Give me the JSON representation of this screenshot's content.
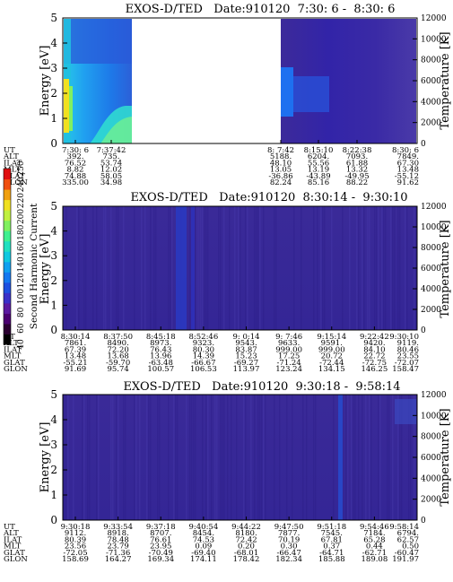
{
  "colorbar": {
    "label": "Second Harmonic Current",
    "ticks": [
      "40",
      "60",
      "80",
      "100",
      "120",
      "140",
      "160",
      "180",
      "200",
      "220",
      "240",
      "250"
    ],
    "colors": [
      "#000000",
      "#2a0030",
      "#4a0070",
      "#5b1aa0",
      "#3a30c8",
      "#1e50e0",
      "#1478f0",
      "#10a0f0",
      "#10c8e0",
      "#20e0c0",
      "#40f090",
      "#80f060",
      "#c0f040",
      "#f0e020",
      "#f0a010",
      "#f05010",
      "#e01010"
    ]
  },
  "chart_data": [
    {
      "type": "heatmap",
      "title": "EXOS-D/TED   Date:910120  7:30: 6 -  8:30: 6",
      "ylabel": "Energy [eV]",
      "ylabel_right": "Temperature [K]",
      "ylim": [
        0,
        5
      ],
      "ylim_right": [
        0,
        12000
      ],
      "yticks": [
        "0",
        "1",
        "2",
        "3",
        "4",
        "5"
      ],
      "yticks_right": [
        "0",
        "2000",
        "4000",
        "6000",
        "8000",
        "10000",
        "12000"
      ],
      "data_gap": [
        "7:37:42",
        "8: 7:42"
      ],
      "rows": [
        {
          "label": "UT",
          "values": [
            "7:30: 6",
            "7:37:42",
            "8: 7:42",
            "8:15:10",
            "8:22:38",
            "8:30: 6"
          ]
        },
        {
          "label": "ALT",
          "values": [
            "392.",
            "735.",
            "5188.",
            "6204.",
            "7093.",
            "7849."
          ]
        },
        {
          "label": "ILAT",
          "values": [
            "76.52",
            "53.74",
            "48.10",
            "55.56",
            "61.88",
            "67.30"
          ]
        },
        {
          "label": "MLT",
          "values": [
            "8.82",
            "12.02",
            "13.05",
            "13.19",
            "13.32",
            "13.48"
          ]
        },
        {
          "label": "GLAT",
          "values": [
            "74.88",
            "58.05",
            "-36.86",
            "-43.89",
            "-49.95",
            "-55.12"
          ]
        },
        {
          "label": "GLON",
          "values": [
            "335.00",
            "34.98",
            "82.24",
            "85.16",
            "88.22",
            "91.62"
          ]
        }
      ]
    },
    {
      "type": "heatmap",
      "title": "EXOS-D/TED   Date:910120  8:30:14 -  9:30:10",
      "ylabel": "Energy [eV]",
      "ylabel_right": "Temperature [K]",
      "ylim": [
        0,
        5
      ],
      "ylim_right": [
        0,
        12000
      ],
      "yticks": [
        "0",
        "1",
        "2",
        "3",
        "4",
        "5"
      ],
      "yticks_right": [
        "0",
        "2000",
        "4000",
        "6000",
        "8000",
        "10000",
        "12000"
      ],
      "rows": [
        {
          "label": "UT",
          "values": [
            "8:30:14",
            "8:37:50",
            "8:45:18",
            "8:52:46",
            "9: 0:14",
            "9: 7:46",
            "9:15:14",
            "9:22:42",
            "9:30:10"
          ]
        },
        {
          "label": "ALT",
          "values": [
            "7861.",
            "8490.",
            "8973.",
            "9323.",
            "9543.",
            "9633.",
            "9591.",
            "9420.",
            "9119."
          ]
        },
        {
          "label": "ILAT",
          "values": [
            "67.39",
            "72.20",
            "76.43",
            "80.30",
            "83.87",
            "999.00",
            "999.00",
            "84.10",
            "80.46"
          ]
        },
        {
          "label": "MLT",
          "values": [
            "13.48",
            "13.68",
            "13.96",
            "14.39",
            "15.23",
            "17.25",
            "20.72",
            "22.72",
            "23.55"
          ]
        },
        {
          "label": "GLAT",
          "values": [
            "-55.21",
            "-59.70",
            "-63.48",
            "-66.67",
            "-69.27",
            "-71.24",
            "-72.44",
            "-72.75",
            "-72.07"
          ]
        },
        {
          "label": "GLON",
          "values": [
            "91.69",
            "95.74",
            "100.57",
            "106.53",
            "113.97",
            "123.24",
            "134.15",
            "146.25",
            "158.47"
          ]
        }
      ]
    },
    {
      "type": "heatmap",
      "title": "EXOS-D/TED   Date:910120  9:30:18 -  9:58:14",
      "ylabel": "Energy [eV]",
      "ylabel_right": "Temperature [K]",
      "ylim": [
        0,
        5
      ],
      "ylim_right": [
        0,
        12000
      ],
      "yticks": [
        "0",
        "1",
        "2",
        "3",
        "4",
        "5"
      ],
      "yticks_right": [
        "0",
        "2000",
        "4000",
        "6000",
        "8000",
        "10000",
        "12000"
      ],
      "rows": [
        {
          "label": "UT",
          "values": [
            "9:30:18",
            "9:33:54",
            "9:37:18",
            "9:40:54",
            "9:44:22",
            "9:47:50",
            "9:51:18",
            "9:54:46",
            "9:58:14"
          ]
        },
        {
          "label": "ALT",
          "values": [
            "9112.",
            "8918.",
            "8707.",
            "8454.",
            "8180.",
            "7877.",
            "7545.",
            "7184.",
            "6794."
          ]
        },
        {
          "label": "ILAT",
          "values": [
            "80.39",
            "78.48",
            "76.61",
            "74.53",
            "72.42",
            "70.19",
            "67.81",
            "65.28",
            "62.57"
          ]
        },
        {
          "label": "MLT",
          "values": [
            "23.56",
            "23.79",
            "23.95",
            "0.09",
            "0.20",
            "0.30",
            "0.37",
            "0.44",
            "0.50"
          ]
        },
        {
          "label": "GLAT",
          "values": [
            "-72.05",
            "-71.36",
            "-70.49",
            "-69.40",
            "-68.01",
            "-66.47",
            "-64.71",
            "-62.71",
            "-60.47"
          ]
        },
        {
          "label": "GLON",
          "values": [
            "158.69",
            "164.27",
            "169.34",
            "174.11",
            "178.42",
            "182.34",
            "185.88",
            "189.08",
            "191.97"
          ]
        }
      ]
    }
  ]
}
